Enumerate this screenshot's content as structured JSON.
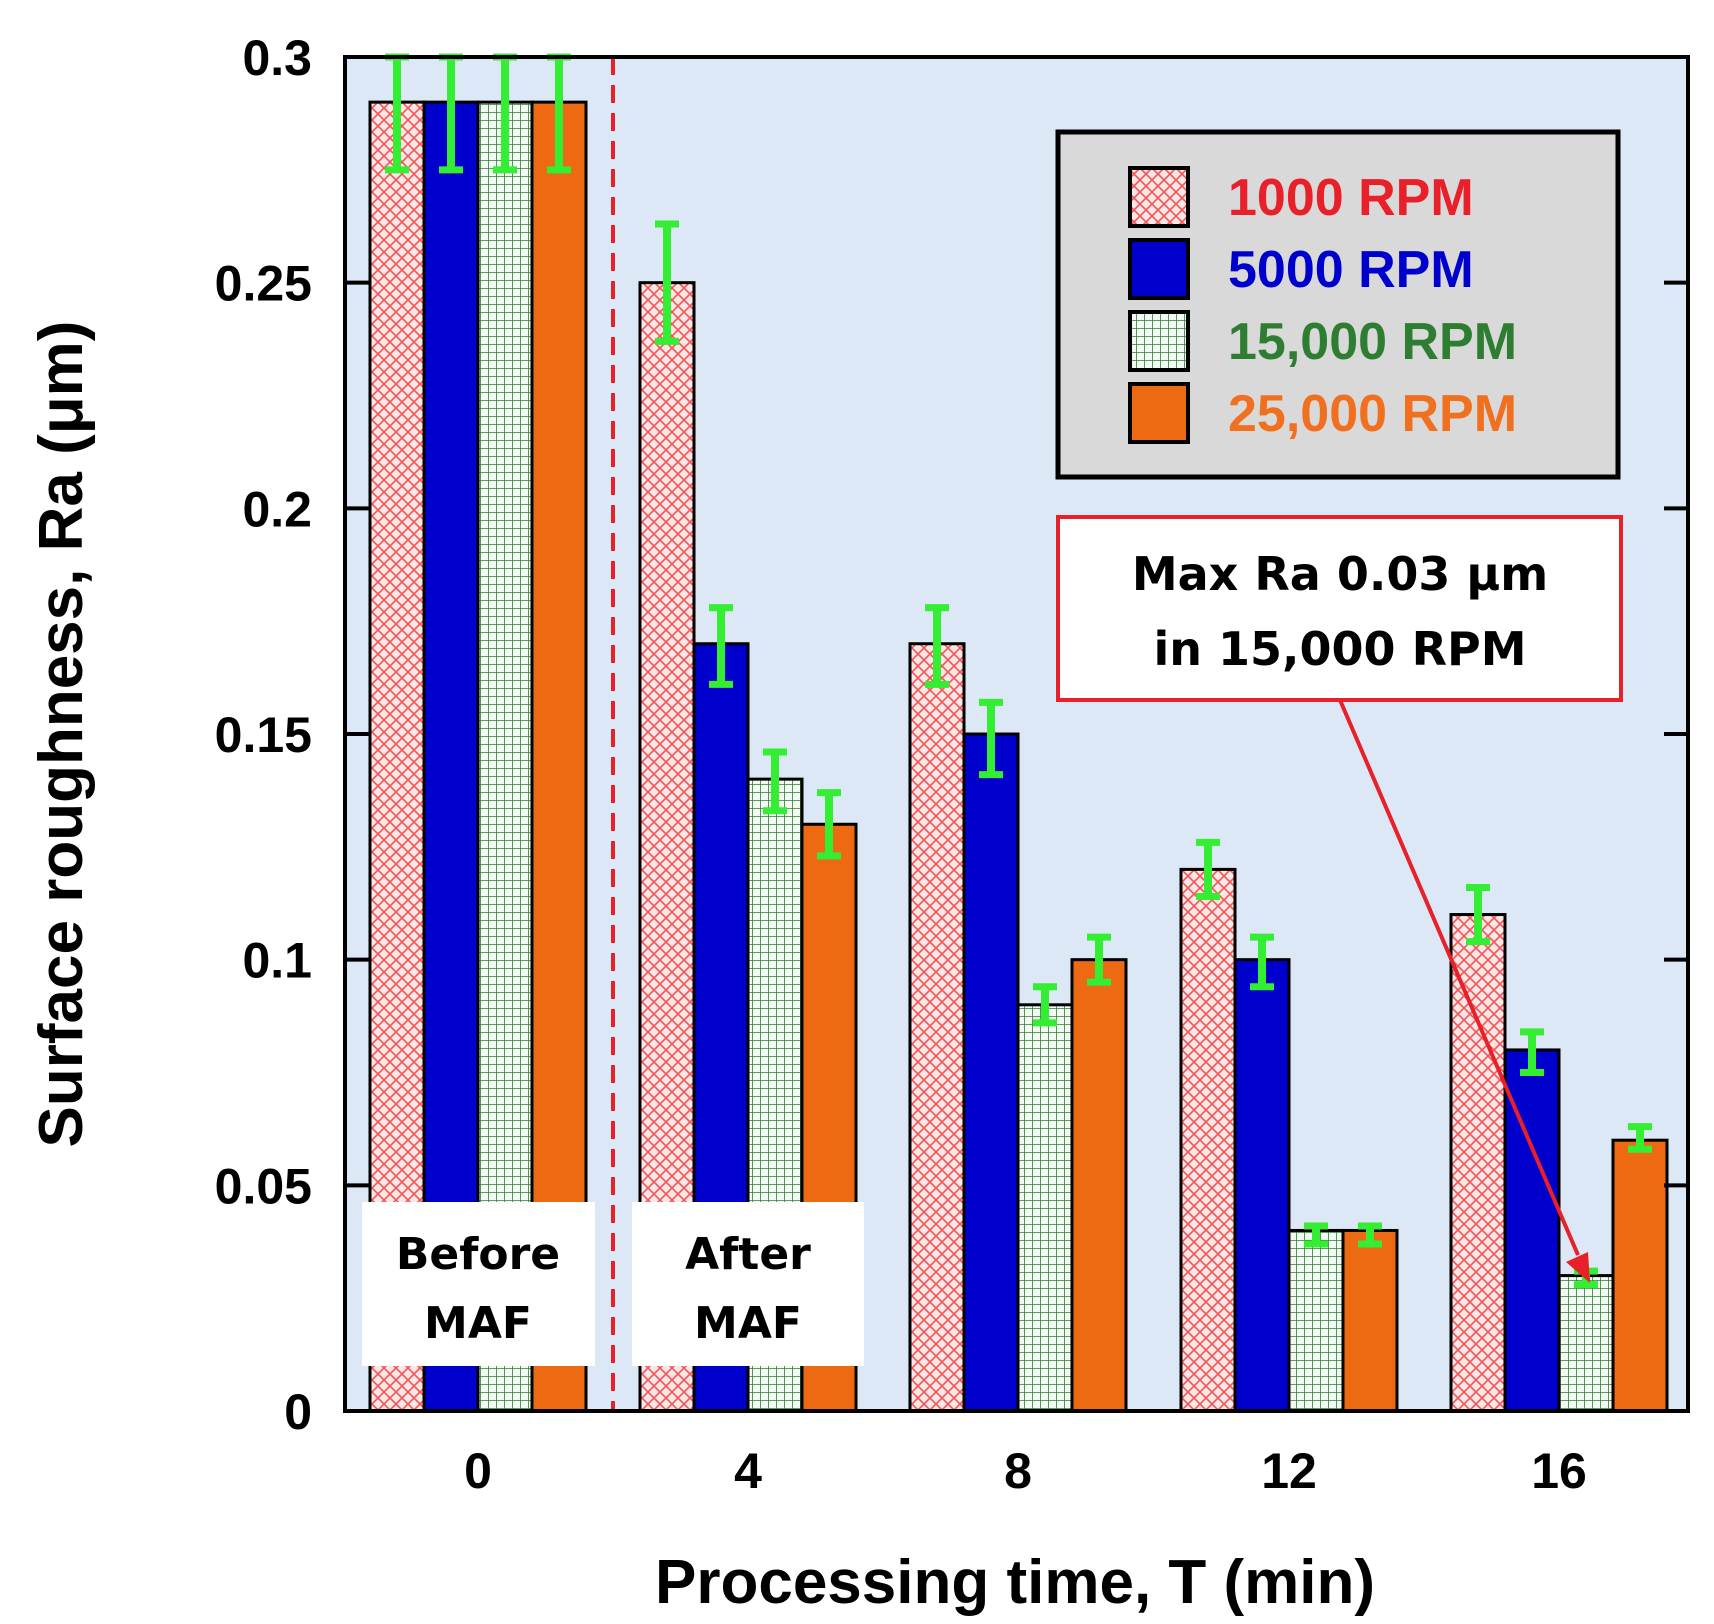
{
  "chart_data": {
    "type": "bar",
    "title": "",
    "xlabel": "Processing time, T (min)",
    "ylabel_prefix": "Surface roughness, Ra",
    "ylabel_italic": "",
    "ylabel_suffix": " (μm)",
    "ylim": [
      0,
      0.3
    ],
    "yticks": [
      "0",
      "0.05",
      "0.1",
      "0.15",
      "0.2",
      "0.25",
      "0.3"
    ],
    "ytick_values": [
      0,
      0.05,
      0.1,
      0.15,
      0.2,
      0.25,
      0.3
    ],
    "categories": [
      "0",
      "4",
      "8",
      "12",
      "16"
    ],
    "grid": false,
    "legend_position": "top-right",
    "series": [
      {
        "name": "1000 RPM",
        "color": "#e8202a",
        "fill": "#ffd9d9",
        "pattern": "crosshatch",
        "values": [
          0.29,
          0.25,
          0.17,
          0.12,
          0.11
        ],
        "err_low": [
          0.275,
          0.237,
          0.161,
          0.114,
          0.104
        ],
        "err_high": [
          0.3,
          0.263,
          0.178,
          0.126,
          0.116
        ]
      },
      {
        "name": "5000 RPM",
        "color": "#0000cc",
        "fill": "#0000cc",
        "pattern": "solid",
        "values": [
          0.29,
          0.17,
          0.15,
          0.1,
          0.08
        ],
        "err_low": [
          0.275,
          0.161,
          0.141,
          0.094,
          0.075
        ],
        "err_high": [
          0.3,
          0.178,
          0.157,
          0.105,
          0.084
        ]
      },
      {
        "name": "15,000 RPM",
        "color": "#2e7d32",
        "fill": "#eaf4ea",
        "pattern": "grid",
        "values": [
          0.29,
          0.14,
          0.09,
          0.04,
          0.03
        ],
        "err_low": [
          0.275,
          0.133,
          0.086,
          0.037,
          0.028
        ],
        "err_high": [
          0.3,
          0.146,
          0.094,
          0.041,
          0.031
        ]
      },
      {
        "name": "25,000 RPM",
        "color": "#f07020",
        "fill": "#ee6a12",
        "pattern": "solid",
        "values": [
          0.29,
          0.13,
          0.1,
          0.04,
          0.06
        ],
        "err_low": [
          0.275,
          0.123,
          0.095,
          0.037,
          0.058
        ],
        "err_high": [
          0.3,
          0.137,
          0.105,
          0.041,
          0.063
        ]
      }
    ],
    "annotations": {
      "before_label": [
        "Before",
        "MAF"
      ],
      "after_label": [
        "After",
        "MAF"
      ],
      "note_lines": [
        "Max Ra 0.03 μm",
        "in 15,000 RPM"
      ]
    },
    "colors": {
      "plot_background": "#dce8f5",
      "legend_background": "#d9d9d9",
      "errorbar": "#33ee33",
      "divider": "#e8202a",
      "note_border": "#e8202a"
    }
  }
}
